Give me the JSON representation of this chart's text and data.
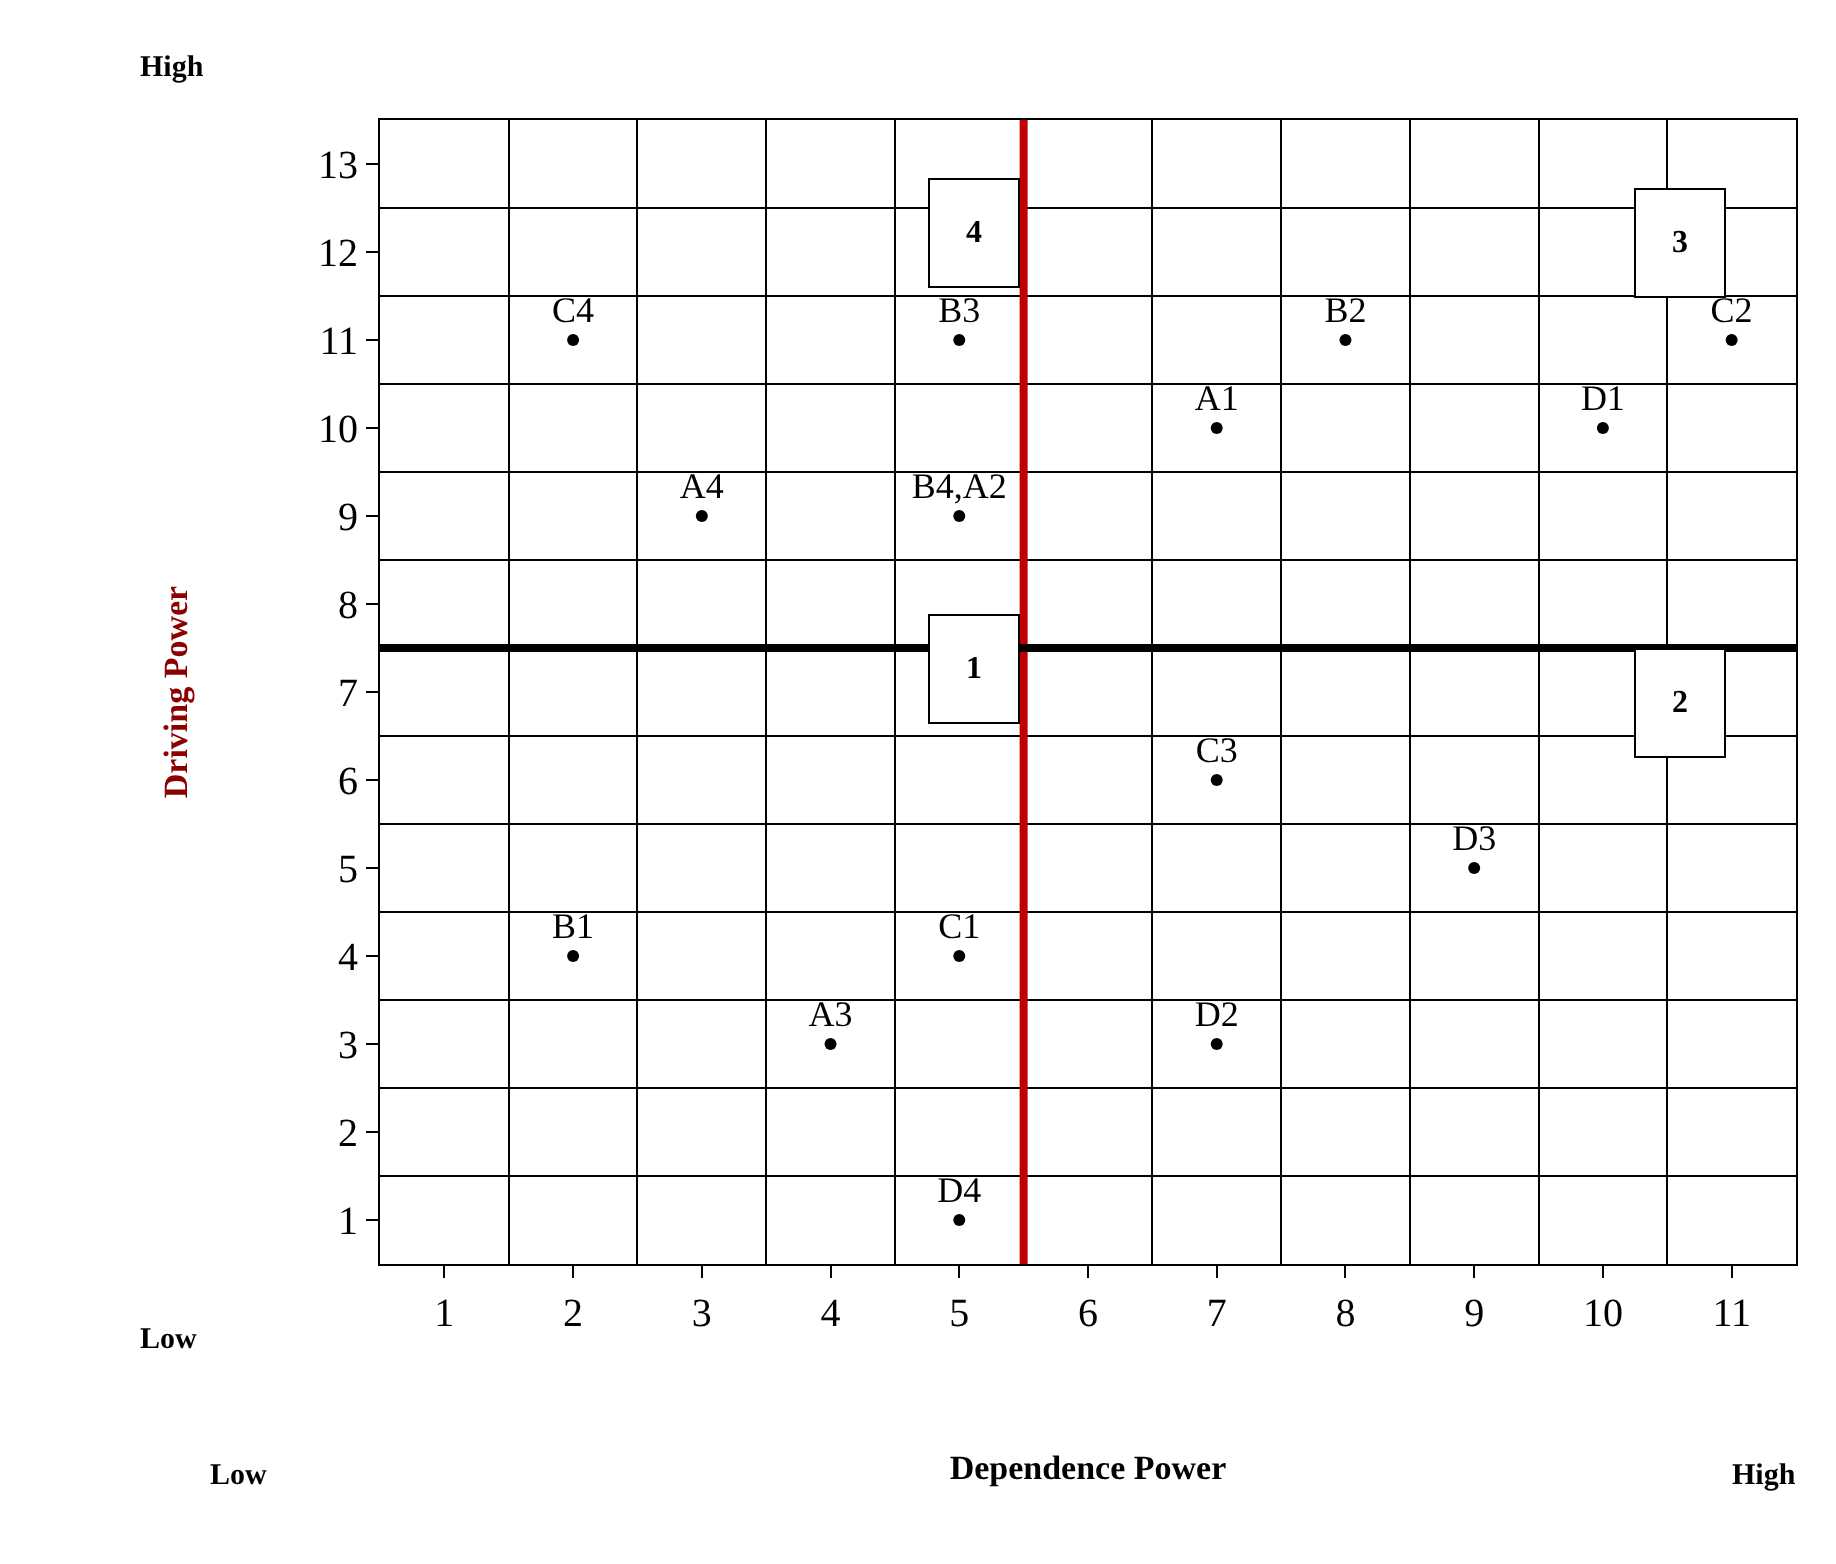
{
  "chart_data": {
    "type": "scatter",
    "xlabel": "Dependence Power",
    "ylabel": "Driving Power",
    "x": [
      2,
      5,
      8,
      11,
      7,
      10,
      3,
      5,
      7,
      9,
      2,
      5,
      4,
      7,
      5
    ],
    "values": [
      11,
      11,
      11,
      11,
      10,
      10,
      9,
      9,
      6,
      5,
      4,
      4,
      3,
      3,
      1
    ],
    "value_labels": [
      "C4",
      "B3",
      "B2",
      "C2",
      "A1",
      "D1",
      "A4",
      "B4,A2",
      "C3",
      "D3",
      "B1",
      "C1",
      "A3",
      "D2",
      "D4"
    ],
    "marker": "circle",
    "xlim": [
      0.5,
      11.5
    ],
    "ylim": [
      0.5,
      13.5
    ],
    "xticks": [
      1,
      2,
      3,
      4,
      5,
      6,
      7,
      8,
      9,
      10,
      11
    ],
    "yticks": [
      1,
      2,
      3,
      4,
      5,
      6,
      7,
      8,
      9,
      10,
      11,
      12,
      13
    ],
    "grid": true,
    "legend": false,
    "ref_lines": [
      {
        "axis": "x",
        "value": 5.5,
        "color": "#c00000"
      },
      {
        "axis": "y",
        "value": 7.5,
        "color": "#000000"
      }
    ],
    "annotations": [
      "1",
      "2",
      "3",
      "4",
      "High",
      "Low",
      "Low",
      "High"
    ]
  }
}
